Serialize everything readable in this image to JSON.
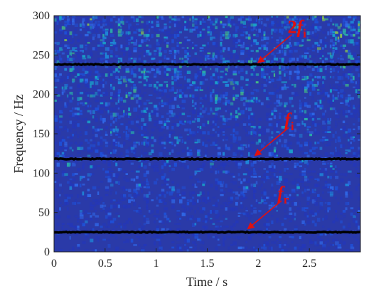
{
  "chart_data": {
    "type": "heatmap",
    "title": "",
    "xlabel": "Time / s",
    "ylabel": "Frequency / Hz",
    "xlim": [
      0,
      3.0
    ],
    "ylim": [
      0,
      300
    ],
    "xticks": [
      "0",
      "0.5",
      "1",
      "1.5",
      "2",
      "2.5"
    ],
    "yticks": [
      "0",
      "50",
      "100",
      "150",
      "200",
      "250",
      "300"
    ],
    "grid": false,
    "colormap": "parula",
    "background_color": "#2a3aa8",
    "series": [
      {
        "label": "2fi",
        "frequency_hz": 238
      },
      {
        "label": "fi",
        "frequency_hz": 118
      },
      {
        "label": "fr",
        "frequency_hz": 25
      }
    ],
    "annotations": [
      {
        "main": "2",
        "italic": "f",
        "sub": "i",
        "time_s": 1.98,
        "frequency_hz": 238
      },
      {
        "main": "",
        "italic": "f",
        "sub": "i",
        "time_s": 1.95,
        "frequency_hz": 120
      },
      {
        "main": "",
        "italic": "f",
        "sub": "r",
        "time_s": 1.88,
        "frequency_hz": 27
      }
    ],
    "annotation_color": "#e01010",
    "ridge_color": "#000000"
  }
}
